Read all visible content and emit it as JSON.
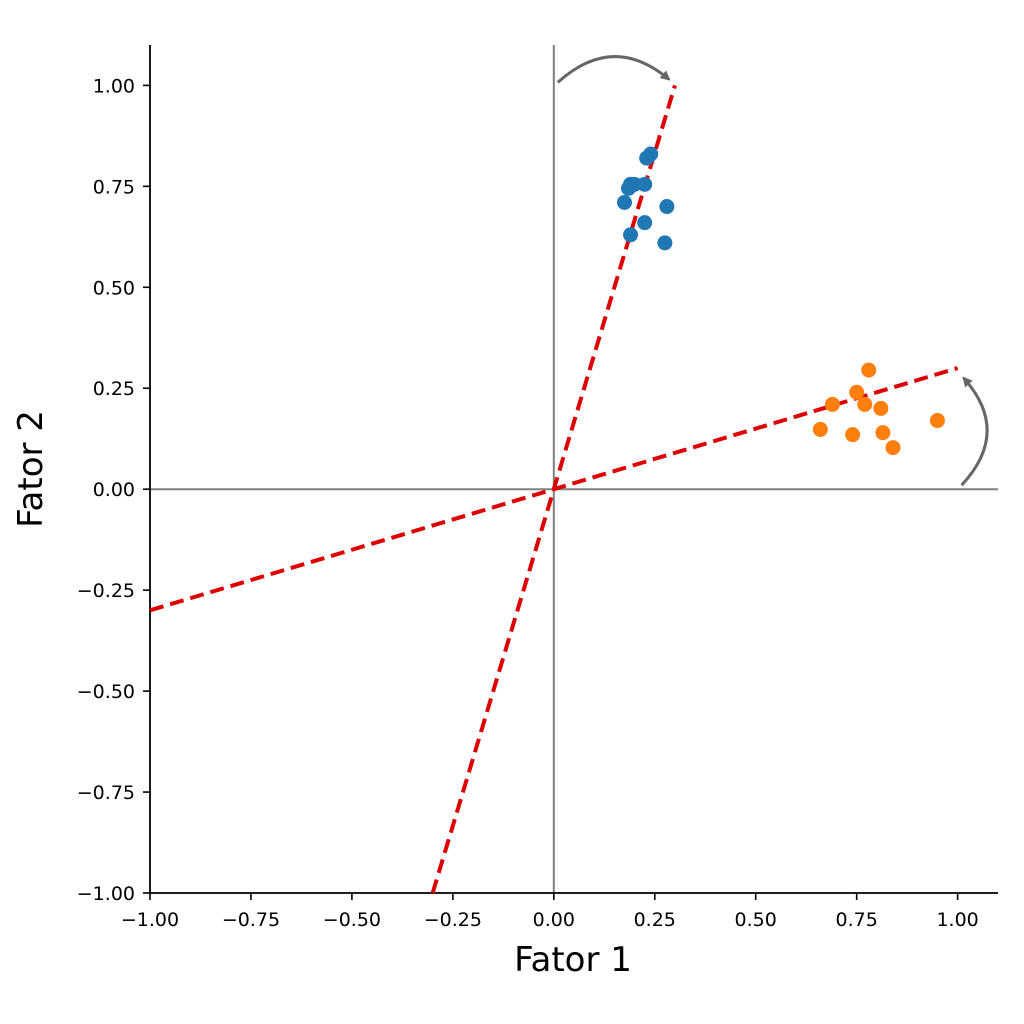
{
  "chart_data": {
    "type": "scatter",
    "title": "",
    "xlabel": "Fator 1",
    "ylabel": "Fator 2",
    "xlim": [
      -1.0,
      1.1
    ],
    "ylim": [
      -1.0,
      1.1
    ],
    "xticks": [
      -1.0,
      -0.75,
      -0.5,
      -0.25,
      0.0,
      0.25,
      0.5,
      0.75,
      1.0
    ],
    "xtick_labels": [
      "−1.00",
      "−0.75",
      "−0.50",
      "−0.25",
      "0.00",
      "0.25",
      "0.50",
      "0.75",
      "1.00"
    ],
    "yticks": [
      -1.0,
      -0.75,
      -0.5,
      -0.25,
      0.0,
      0.25,
      0.5,
      0.75,
      1.0
    ],
    "ytick_labels": [
      "−1.00",
      "−0.75",
      "−0.50",
      "−0.25",
      "0.00",
      "0.25",
      "0.50",
      "0.75",
      "1.00"
    ],
    "grid": false,
    "spines": [
      "left",
      "bottom"
    ],
    "reference_lines": [
      {
        "axis": "x",
        "value": 0.0,
        "color": "#808080"
      },
      {
        "axis": "y",
        "value": 0.0,
        "color": "#808080"
      }
    ],
    "series": [
      {
        "color": "#1f77b4",
        "points": [
          [
            0.24,
            0.83
          ],
          [
            0.23,
            0.82
          ],
          [
            0.19,
            0.755
          ],
          [
            0.2,
            0.755
          ],
          [
            0.225,
            0.755
          ],
          [
            0.185,
            0.745
          ],
          [
            0.175,
            0.71
          ],
          [
            0.28,
            0.7
          ],
          [
            0.225,
            0.66
          ],
          [
            0.19,
            0.63
          ],
          [
            0.275,
            0.61
          ]
        ]
      },
      {
        "color": "#ff7f0e",
        "points": [
          [
            0.78,
            0.295
          ],
          [
            0.75,
            0.24
          ],
          [
            0.69,
            0.21
          ],
          [
            0.77,
            0.21
          ],
          [
            0.81,
            0.2
          ],
          [
            0.95,
            0.17
          ],
          [
            0.66,
            0.148
          ],
          [
            0.815,
            0.14
          ],
          [
            0.74,
            0.135
          ],
          [
            0.84,
            0.103
          ]
        ]
      }
    ],
    "rotated_axes": [
      {
        "from": [
          -0.3,
          -1.0
        ],
        "to": [
          0.3,
          1.0
        ],
        "color": "#dd0000",
        "style": "dashed"
      },
      {
        "from": [
          -1.0,
          -0.3
        ],
        "to": [
          1.0,
          0.3
        ],
        "color": "#dd0000",
        "style": "dashed"
      }
    ],
    "rotation_arrows": [
      {
        "from": [
          0.0,
          1.0
        ],
        "to": [
          0.3,
          1.0
        ],
        "color": "#666666"
      },
      {
        "from": [
          1.0,
          0.0
        ],
        "to": [
          1.0,
          0.3
        ],
        "color": "#666666"
      }
    ]
  }
}
